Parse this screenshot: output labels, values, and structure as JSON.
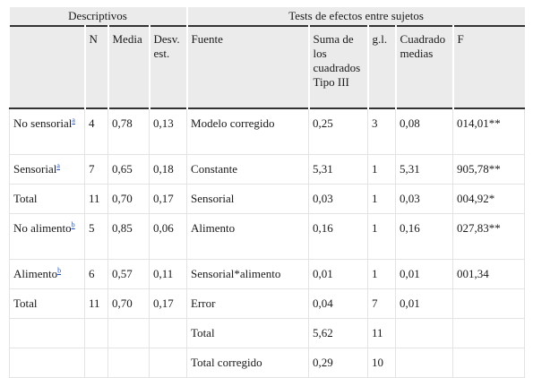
{
  "group_headers": {
    "left": "Descriptivos",
    "right": "Tests de efectos entre sujetos"
  },
  "columns": {
    "blank": "",
    "n": "N",
    "media": "Media",
    "desv": "Desv. est.",
    "fuente": "Fuente",
    "suma": "Suma de los cuadrados Tipo III",
    "gl": "g.l.",
    "cuadrado": "Cuadrado medias",
    "f": "F"
  },
  "rows": [
    {
      "label": "No sensorial",
      "sup": "a",
      "n": "4",
      "media": "0,78",
      "desv": "0,13",
      "fuente": "Modelo corregido",
      "suma": "0,25",
      "gl": "3",
      "cuadrado": "0,08",
      "f": "014,01**"
    },
    {
      "label": "Sensorial",
      "sup": "a",
      "n": "7",
      "media": "0,65",
      "desv": "0,18",
      "fuente": "Constante",
      "suma": "5,31",
      "gl": "1",
      "cuadrado": "5,31",
      "f": "905,78**"
    },
    {
      "label": "Total",
      "sup": "",
      "n": "11",
      "media": "0,70",
      "desv": "0,17",
      "fuente": "Sensorial",
      "suma": "0,03",
      "gl": "1",
      "cuadrado": "0,03",
      "f": "004,92*"
    },
    {
      "label": "No alimento",
      "sup": "b",
      "n": "5",
      "media": "0,85",
      "desv": "0,06",
      "fuente": "Alimento",
      "suma": "0,16",
      "gl": "1",
      "cuadrado": "0,16",
      "f": "027,83**"
    },
    {
      "label": "Alimento",
      "sup": "b",
      "n": "6",
      "media": "0,57",
      "desv": "0,11",
      "fuente": "Sensorial*alimento",
      "suma": "0,01",
      "gl": "1",
      "cuadrado": "0,01",
      "f": "001,34"
    },
    {
      "label": "Total",
      "sup": "",
      "n": "11",
      "media": "0,70",
      "desv": "0,17",
      "fuente": "Error",
      "suma": "0,04",
      "gl": "7",
      "cuadrado": "0,01",
      "f": ""
    },
    {
      "label": "",
      "sup": "",
      "n": "",
      "media": "",
      "desv": "",
      "fuente": "Total",
      "suma": "5,62",
      "gl": "11",
      "cuadrado": "",
      "f": ""
    },
    {
      "label": "",
      "sup": "",
      "n": "",
      "media": "",
      "desv": "",
      "fuente": "Total corregido",
      "suma": "0,29",
      "gl": "10",
      "cuadrado": "",
      "f": ""
    }
  ]
}
